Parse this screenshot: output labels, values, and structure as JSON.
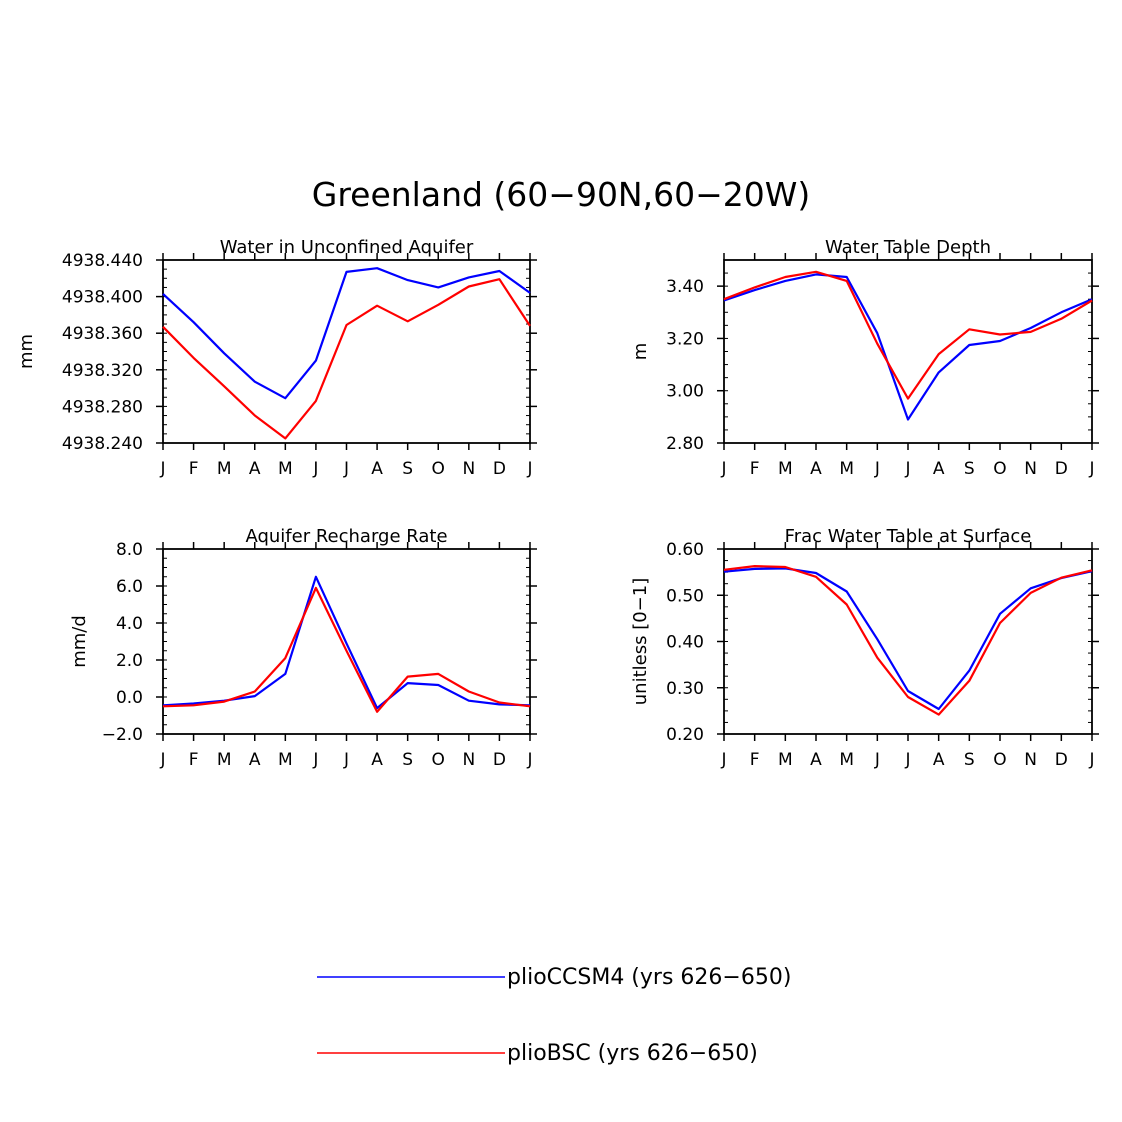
{
  "figure": {
    "title": "Greenland (60−90N,60−20W)",
    "months": [
      "J",
      "F",
      "M",
      "A",
      "M",
      "J",
      "J",
      "A",
      "S",
      "O",
      "N",
      "D",
      "J"
    ]
  },
  "colors": {
    "ccsm4": "#0000ff",
    "bsc": "#ff0000"
  },
  "legend": [
    {
      "key": "ccsm4",
      "label": "plioCCSM4 (yrs 626−650)"
    },
    {
      "key": "bsc",
      "label": "plioBSC (yrs 626−650)"
    }
  ],
  "chart_data": [
    {
      "id": "aquifer",
      "type": "line",
      "title": "Water in Unconfined Aquifer",
      "xlabel": "",
      "ylabel": "mm",
      "ylim": [
        4938.24,
        4938.44
      ],
      "yticks": [
        4938.24,
        4938.28,
        4938.32,
        4938.36,
        4938.4,
        4938.44
      ],
      "ytick_labels": [
        "4938.240",
        "4938.280",
        "4938.320",
        "4938.360",
        "4938.400",
        "4938.440"
      ],
      "categories": [
        "J",
        "F",
        "M",
        "A",
        "M",
        "J",
        "J",
        "A",
        "S",
        "O",
        "N",
        "D",
        "J"
      ],
      "series": [
        {
          "name": "plioCCSM4 (yrs 626−650)",
          "color": "ccsm4",
          "values": [
            4938.403,
            4938.372,
            4938.338,
            4938.307,
            4938.289,
            4938.33,
            4938.427,
            4938.431,
            4938.418,
            4938.41,
            4938.421,
            4938.428,
            4938.404
          ]
        },
        {
          "name": "plioBSC (yrs 626−650)",
          "color": "bsc",
          "values": [
            4938.367,
            4938.333,
            4938.302,
            4938.27,
            4938.245,
            4938.286,
            4938.369,
            4938.39,
            4938.373,
            4938.391,
            4938.411,
            4938.419,
            4938.368
          ]
        }
      ]
    },
    {
      "id": "wtd",
      "type": "line",
      "title": "Water Table Depth",
      "xlabel": "",
      "ylabel": "m",
      "ylim": [
        2.8,
        3.5
      ],
      "yticks": [
        2.8,
        3.0,
        3.2,
        3.4
      ],
      "ytick_labels": [
        "2.80",
        "3.00",
        "3.20",
        "3.40"
      ],
      "categories": [
        "J",
        "F",
        "M",
        "A",
        "M",
        "J",
        "J",
        "A",
        "S",
        "O",
        "N",
        "D",
        "J"
      ],
      "series": [
        {
          "name": "plioCCSM4 (yrs 626−650)",
          "color": "ccsm4",
          "values": [
            3.345,
            3.385,
            3.42,
            3.445,
            3.435,
            3.22,
            2.89,
            3.07,
            3.175,
            3.19,
            3.24,
            3.3,
            3.35
          ]
        },
        {
          "name": "plioBSC (yrs 626−650)",
          "color": "bsc",
          "values": [
            3.35,
            3.395,
            3.435,
            3.455,
            3.42,
            3.18,
            2.97,
            3.14,
            3.235,
            3.215,
            3.225,
            3.275,
            3.345
          ]
        }
      ]
    },
    {
      "id": "recharge",
      "type": "line",
      "title": "Aquifer Recharge Rate",
      "xlabel": "",
      "ylabel": "mm/d",
      "ylim": [
        -2.0,
        8.0
      ],
      "yticks": [
        -2.0,
        0.0,
        2.0,
        4.0,
        6.0,
        8.0
      ],
      "ytick_labels": [
        "−2.0",
        "0.0",
        "2.0",
        "4.0",
        "6.0",
        "8.0"
      ],
      "categories": [
        "J",
        "F",
        "M",
        "A",
        "M",
        "J",
        "J",
        "A",
        "S",
        "O",
        "N",
        "D",
        "J"
      ],
      "series": [
        {
          "name": "plioCCSM4 (yrs 626−650)",
          "color": "ccsm4",
          "values": [
            -0.45,
            -0.35,
            -0.2,
            0.05,
            1.25,
            6.5,
            2.9,
            -0.6,
            0.75,
            0.65,
            -0.2,
            -0.4,
            -0.45
          ]
        },
        {
          "name": "plioBSC (yrs 626−650)",
          "color": "bsc",
          "values": [
            -0.5,
            -0.45,
            -0.25,
            0.3,
            2.1,
            5.9,
            2.5,
            -0.8,
            1.1,
            1.25,
            0.3,
            -0.3,
            -0.5
          ]
        }
      ]
    },
    {
      "id": "frac",
      "type": "line",
      "title": "Frac Water Table at Surface",
      "xlabel": "",
      "ylabel": "unitless [0−1]",
      "ylim": [
        0.2,
        0.6
      ],
      "yticks": [
        0.2,
        0.3,
        0.4,
        0.5,
        0.6
      ],
      "ytick_labels": [
        "0.20",
        "0.30",
        "0.40",
        "0.50",
        "0.60"
      ],
      "categories": [
        "J",
        "F",
        "M",
        "A",
        "M",
        "J",
        "J",
        "A",
        "S",
        "O",
        "N",
        "D",
        "J"
      ],
      "series": [
        {
          "name": "plioCCSM4 (yrs 626−650)",
          "color": "ccsm4",
          "values": [
            0.551,
            0.557,
            0.558,
            0.548,
            0.508,
            0.405,
            0.293,
            0.254,
            0.337,
            0.46,
            0.515,
            0.537,
            0.552
          ]
        },
        {
          "name": "plioBSC (yrs 626−650)",
          "color": "bsc",
          "values": [
            0.555,
            0.563,
            0.561,
            0.54,
            0.48,
            0.365,
            0.28,
            0.242,
            0.315,
            0.44,
            0.505,
            0.538,
            0.554
          ]
        }
      ]
    }
  ]
}
